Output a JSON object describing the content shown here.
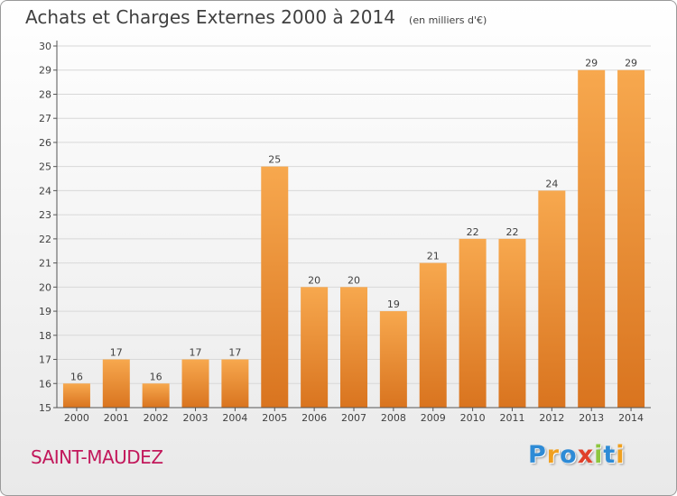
{
  "title": "Achats et Charges Externes 2000 à 2014",
  "unit": "(en milliers d'€)",
  "town": "SAINT-MAUDEZ",
  "brand": {
    "letters": [
      "P",
      "r",
      "o",
      "x",
      "i",
      "t",
      "i"
    ],
    "colors": [
      "#2e8bd6",
      "#f0a020",
      "#2e8bd6",
      "#e0402a",
      "#8dc63f",
      "#2e8bd6",
      "#f0a020"
    ]
  },
  "colors": {
    "bar_light": "#f7a84e",
    "bar_dark": "#d9741f",
    "axis": "#555555",
    "grid": "#d8d8d8",
    "text": "#404040",
    "town": "#c2185b"
  },
  "chart_data": {
    "type": "bar",
    "title": "Achats et Charges Externes 2000 à 2014",
    "subtitle": "(en milliers d'€)",
    "xlabel": "",
    "ylabel": "",
    "categories": [
      "2000",
      "2001",
      "2002",
      "2003",
      "2004",
      "2005",
      "2006",
      "2007",
      "2008",
      "2009",
      "2010",
      "2011",
      "2012",
      "2013",
      "2014"
    ],
    "values": [
      16,
      17,
      16,
      17,
      17,
      25,
      20,
      20,
      19,
      21,
      22,
      22,
      24,
      29,
      29
    ],
    "data_labels": [
      "16",
      "17",
      "16",
      "17",
      "17",
      "25",
      "20",
      "20",
      "19",
      "21",
      "22",
      "22",
      "24",
      "29",
      "29"
    ],
    "ylim": [
      15,
      30
    ],
    "yticks": [
      "15",
      "16",
      "17",
      "18",
      "19",
      "20",
      "21",
      "22",
      "23",
      "24",
      "25",
      "26",
      "27",
      "28",
      "29",
      "30"
    ],
    "grid": true,
    "legend": "none"
  }
}
